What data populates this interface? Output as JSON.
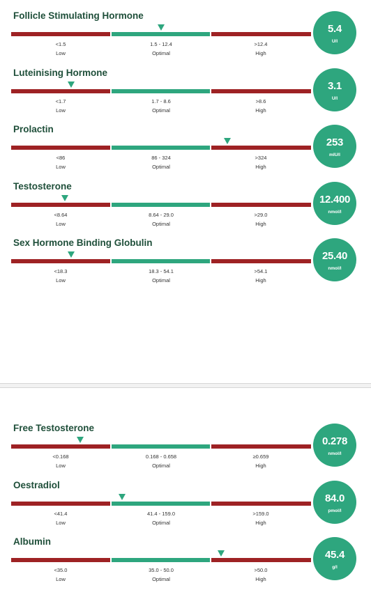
{
  "colors": {
    "out_of_range": "#9e2224",
    "optimal": "#2ea67e",
    "title": "#1f4f3a"
  },
  "category_labels": {
    "low": "Low",
    "optimal": "Optimal",
    "high": "High"
  },
  "markers": [
    {
      "name": "Follicle Stimulating Hormone",
      "value": "5.4",
      "unit": "U/l",
      "low": "<1.5",
      "optimal": "1.5 - 12.4",
      "high": ">12.4",
      "position": 0.5
    },
    {
      "name": "Luteinising Hormone",
      "value": "3.1",
      "unit": "U/l",
      "low": "<1.7",
      "optimal": "1.7 - 8.6",
      "high": ">8.6",
      "position": 0.2
    },
    {
      "name": "Prolactin",
      "value": "253",
      "unit": "mIU/l",
      "low": "<86",
      "optimal": "86 - 324",
      "high": ">324",
      "position": 0.72
    },
    {
      "name": "Testosterone",
      "value": "12.400",
      "unit": "nmol/l",
      "low": "<8.64",
      "optimal": "8.64 - 29.0",
      "high": ">29.0",
      "position": 0.18
    },
    {
      "name": "Sex Hormone Binding Globulin",
      "value": "25.40",
      "unit": "nmol/l",
      "low": "<18.3",
      "optimal": "18.3 - 54.1",
      "high": ">54.1",
      "position": 0.2
    },
    {
      "name": "Free Testosterone",
      "value": "0.278",
      "unit": "nmol/l",
      "low": "<0.168",
      "optimal": "0.168 - 0.658",
      "high": "≥0.659",
      "position": 0.23
    },
    {
      "name": "Oestradiol",
      "value": "84.0",
      "unit": "pmol/l",
      "low": "<41.4",
      "optimal": "41.4 - 159.0",
      "high": ">159.0",
      "position": 0.37
    },
    {
      "name": "Albumin",
      "value": "45.4",
      "unit": "g/l",
      "low": "<35.0",
      "optimal": "35.0 - 50.0",
      "high": ">50.0",
      "position": 0.7
    }
  ]
}
